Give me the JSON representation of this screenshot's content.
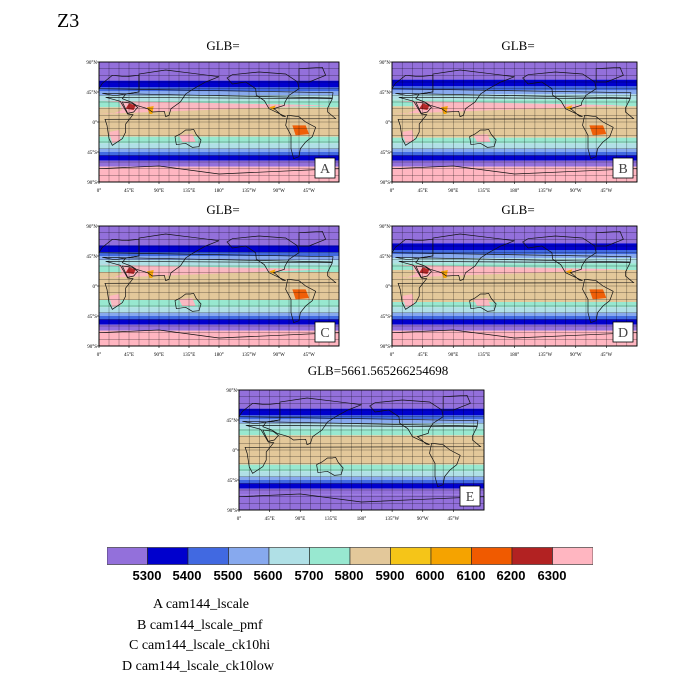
{
  "figure": {
    "title": "Z3"
  },
  "panels": [
    {
      "id": "A",
      "title": "GLB=",
      "variant": 0
    },
    {
      "id": "B",
      "title": "GLB=",
      "variant": 1
    },
    {
      "id": "C",
      "title": "GLB=",
      "variant": 2
    },
    {
      "id": "D",
      "title": "GLB=",
      "variant": 3
    },
    {
      "id": "E",
      "title": "GLB=5661.565266254698",
      "variant": 4
    }
  ],
  "axes": {
    "lat_ticks": [
      "90°N",
      "45°N",
      "0°",
      "45°S",
      "90°S"
    ],
    "lon_ticks": [
      "0°",
      "45°E",
      "90°E",
      "135°E",
      "180°",
      "135°W",
      "90°W",
      "45°W"
    ]
  },
  "colorbar": {
    "labels": [
      "5300",
      "5400",
      "5500",
      "5600",
      "5700",
      "5800",
      "5900",
      "6000",
      "6100",
      "6200",
      "6300"
    ],
    "colors": [
      "#9370db",
      "#0000cd",
      "#4169e1",
      "#87a9ee",
      "#b0e0e6",
      "#98e8d0",
      "#e3c89a",
      "#f5c518",
      "#f5a300",
      "#f05a00",
      "#b22222",
      "#ffb6c1"
    ]
  },
  "legend": [
    "A  cam144_lscale",
    "B  cam144_lscale_pmf",
    "C  cam144_lscale_ck10hi",
    "D  cam144_lscale_ck10low"
  ]
}
